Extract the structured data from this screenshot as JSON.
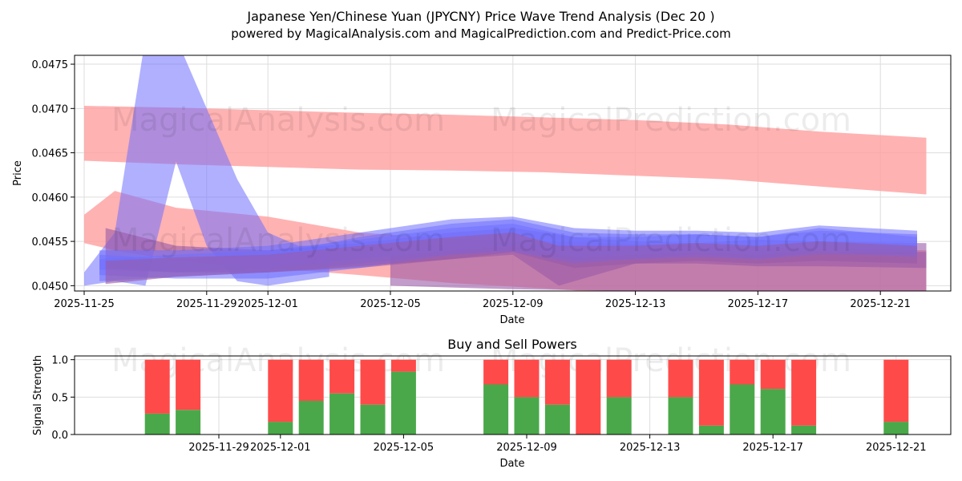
{
  "header": {
    "title": "Japanese Yen/Chinese Yuan (JPYCNY) Price Wave Trend Analysis (Dec 20 )",
    "subtitle": "powered by MagicalAnalysis.com and MagicalPrediction.com and Predict-Price.com"
  },
  "watermarks": [
    "MagicalAnalysis.com",
    "MagicalPrediction.com"
  ],
  "colors": {
    "sell": "#ff4a4a",
    "buy": "#4aa84a",
    "red_band": "#ff9f9f",
    "blue_band": "#6f6fff",
    "purple_band": "#9a5aa8",
    "grid": "#dddddd"
  },
  "chart_data": [
    {
      "type": "area",
      "title": "",
      "xlabel": "Date",
      "ylabel": "Price",
      "xlim": [
        "2025-11-24.5",
        "2025-12-22.9"
      ],
      "ylim": [
        0.04494,
        0.0476
      ],
      "x_ticks": [
        "2025-11-25",
        "2025-11-29",
        "2025-12-01",
        "2025-12-05",
        "2025-12-09",
        "2025-12-13",
        "2025-12-17",
        "2025-12-21"
      ],
      "y_ticks": [
        "0.0450",
        "0.0455",
        "0.0460",
        "0.0465",
        "0.0470",
        "0.0475"
      ],
      "grid": true,
      "series": [
        {
          "name": "upper red band",
          "color": "red",
          "x": [
            0,
            3,
            6,
            9,
            12,
            15,
            18,
            21,
            24,
            27.5
          ],
          "low": [
            0.04641,
            0.04637,
            0.04634,
            0.04631,
            0.0463,
            0.04628,
            0.04624,
            0.0462,
            0.04612,
            0.04603
          ],
          "high": [
            0.04703,
            0.04701,
            0.04698,
            0.04695,
            0.04693,
            0.0469,
            0.04687,
            0.04682,
            0.04674,
            0.04667
          ]
        },
        {
          "name": "lower red band",
          "color": "red",
          "x": [
            0,
            1,
            3,
            6,
            9,
            12,
            15,
            18,
            21,
            24,
            27.5
          ],
          "low": [
            0.04548,
            0.0454,
            0.04528,
            0.0452,
            0.04512,
            0.04503,
            0.04497,
            0.0449,
            0.04488,
            0.04486,
            0.04485
          ],
          "high": [
            0.0458,
            0.04607,
            0.04588,
            0.04578,
            0.0456,
            0.04553,
            0.0455,
            0.04547,
            0.04544,
            0.04542,
            0.0454
          ]
        },
        {
          "name": "blue spike",
          "color": "blue",
          "x": [
            0,
            1,
            2,
            3,
            4,
            5,
            6,
            7,
            8
          ],
          "low": [
            0.045,
            0.04505,
            0.045,
            0.0464,
            0.04545,
            0.04505,
            0.045,
            0.04505,
            0.0451
          ],
          "high": [
            0.04515,
            0.0456,
            0.0478,
            0.0478,
            0.047,
            0.0462,
            0.0456,
            0.04545,
            0.04545
          ]
        },
        {
          "name": "purple tail",
          "color": "purple",
          "x": [
            10,
            14,
            18,
            22,
            27.5
          ],
          "low": [
            0.045,
            0.04496,
            0.04494,
            0.04492,
            0.04494
          ],
          "high": [
            0.04545,
            0.04548,
            0.04542,
            0.0454,
            0.04538
          ]
        },
        {
          "name": "purple wave",
          "color": "purple",
          "x": [
            0.7,
            3,
            6,
            9,
            12,
            14,
            16,
            18,
            20,
            22,
            24,
            27.5
          ],
          "low": [
            0.0452,
            0.04515,
            0.04515,
            0.0452,
            0.0453,
            0.04538,
            0.0452,
            0.04525,
            0.04525,
            0.04522,
            0.04522,
            0.0452
          ],
          "high": [
            0.04565,
            0.04545,
            0.0454,
            0.04548,
            0.0456,
            0.04565,
            0.04555,
            0.0455,
            0.04548,
            0.04552,
            0.0455,
            0.04548
          ]
        },
        {
          "name": "blue wave 1",
          "color": "blue",
          "x": [
            0.5,
            3,
            6,
            9,
            12,
            14,
            16,
            18,
            20,
            22,
            24,
            27.2
          ],
          "low": [
            0.04512,
            0.04508,
            0.04508,
            0.0452,
            0.04535,
            0.0454,
            0.04528,
            0.0453,
            0.04532,
            0.0453,
            0.04535,
            0.04535
          ],
          "high": [
            0.04535,
            0.0453,
            0.04535,
            0.04555,
            0.0457,
            0.04575,
            0.0456,
            0.04558,
            0.04558,
            0.04555,
            0.04562,
            0.04558
          ]
        },
        {
          "name": "blue wave 2",
          "color": "blue",
          "x": [
            0.5,
            3,
            6,
            9,
            12,
            14,
            16,
            18,
            20,
            22,
            24,
            27.2
          ],
          "low": [
            0.04518,
            0.04515,
            0.0452,
            0.0453,
            0.0454,
            0.04545,
            0.04532,
            0.04535,
            0.04538,
            0.04535,
            0.0454,
            0.04538
          ],
          "high": [
            0.0454,
            0.0454,
            0.04545,
            0.0456,
            0.04575,
            0.04578,
            0.04565,
            0.04562,
            0.04562,
            0.0456,
            0.04568,
            0.04562
          ]
        },
        {
          "name": "blue wave 3",
          "color": "blue",
          "x": [
            0.5,
            3,
            6,
            9,
            12,
            14,
            16,
            18,
            20,
            22,
            24,
            27.2
          ],
          "low": [
            0.04505,
            0.0451,
            0.04515,
            0.04525,
            0.04535,
            0.04538,
            0.04525,
            0.0453,
            0.04535,
            0.0453,
            0.04538,
            0.04532
          ],
          "high": [
            0.0453,
            0.04535,
            0.0454,
            0.04552,
            0.04565,
            0.0457,
            0.04555,
            0.04555,
            0.04558,
            0.04555,
            0.04565,
            0.04555
          ]
        },
        {
          "name": "purple wave 2",
          "color": "purple",
          "x": [
            0.7,
            3,
            6,
            9,
            12,
            14,
            15.5,
            18,
            20,
            22,
            24,
            27.2
          ],
          "low": [
            0.04502,
            0.0451,
            0.04515,
            0.04522,
            0.0453,
            0.04535,
            0.045,
            0.04525,
            0.04528,
            0.04525,
            0.04528,
            0.04525
          ],
          "high": [
            0.04528,
            0.04532,
            0.04535,
            0.04545,
            0.04555,
            0.0456,
            0.04545,
            0.04545,
            0.04548,
            0.04545,
            0.0455,
            0.04545
          ]
        }
      ]
    },
    {
      "type": "bar",
      "title": "Buy and Sell Powers",
      "xlabel": "Date",
      "ylabel": "Signal Strength",
      "ylim": [
        0,
        1.05
      ],
      "y_ticks": [
        "0.0",
        "0.5",
        "1.0"
      ],
      "x_ticks": [
        "2025-11-29",
        "2025-12-01",
        "2025-12-05",
        "2025-12-09",
        "2025-12-13",
        "2025-12-17",
        "2025-12-21"
      ],
      "grid": true,
      "series": [
        {
          "name": "Buy",
          "color": "green",
          "days": [
            2,
            3,
            6,
            7,
            8,
            9,
            10,
            13,
            14,
            15,
            16,
            17,
            19,
            20,
            21,
            22,
            23,
            26
          ],
          "values": [
            0.28,
            0.33,
            0.17,
            0.45,
            0.55,
            0.4,
            0.84,
            0.67,
            0.5,
            0.4,
            0.0,
            0.5,
            0.5,
            0.12,
            0.67,
            0.61,
            0.12,
            0.17
          ]
        },
        {
          "name": "Sell",
          "color": "red",
          "days": [
            2,
            3,
            6,
            7,
            8,
            9,
            10,
            13,
            14,
            15,
            16,
            17,
            19,
            20,
            21,
            22,
            23,
            26
          ],
          "values": [
            0.72,
            0.67,
            0.83,
            0.55,
            0.45,
            0.6,
            0.16,
            0.33,
            0.5,
            0.6,
            1.0,
            0.5,
            0.5,
            0.88,
            0.33,
            0.39,
            0.88,
            0.83
          ]
        }
      ]
    }
  ]
}
